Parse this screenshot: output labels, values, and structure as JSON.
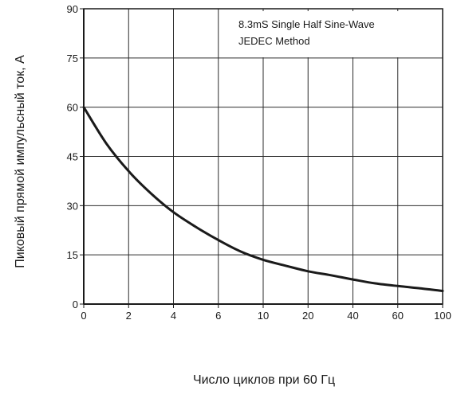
{
  "chart_data": {
    "type": "line",
    "title": "",
    "xlabel": "Число циклов при 60 Гц",
    "ylabel": "Пиковый прямой импульсный ток, А",
    "x_ticks": [
      "0",
      "2",
      "4",
      "6",
      "10",
      "20",
      "40",
      "60",
      "100"
    ],
    "y_ticks": [
      "0",
      "15",
      "30",
      "45",
      "60",
      "75",
      "90"
    ],
    "ylim": [
      0,
      90
    ],
    "grid": true,
    "annotation": [
      "8.3mS  Single  Half  Sine-Wave",
      "JEDEC  Method"
    ],
    "series": [
      {
        "color": "#1a1a1a",
        "points": [
          {
            "tick": 0,
            "y": 60
          },
          {
            "tick": 0.5,
            "y": 49
          },
          {
            "tick": 1,
            "y": 40.5
          },
          {
            "tick": 1.5,
            "y": 33.7
          },
          {
            "tick": 2,
            "y": 28
          },
          {
            "tick": 2.5,
            "y": 23.5
          },
          {
            "tick": 3,
            "y": 19.5
          },
          {
            "tick": 3.5,
            "y": 16
          },
          {
            "tick": 4,
            "y": 13.5
          },
          {
            "tick": 4.5,
            "y": 11.7
          },
          {
            "tick": 5,
            "y": 10
          },
          {
            "tick": 5.5,
            "y": 8.8
          },
          {
            "tick": 6,
            "y": 7.5
          },
          {
            "tick": 6.5,
            "y": 6.3
          },
          {
            "tick": 7,
            "y": 5.5
          },
          {
            "tick": 7.5,
            "y": 4.8
          },
          {
            "tick": 8,
            "y": 4
          }
        ]
      }
    ]
  }
}
